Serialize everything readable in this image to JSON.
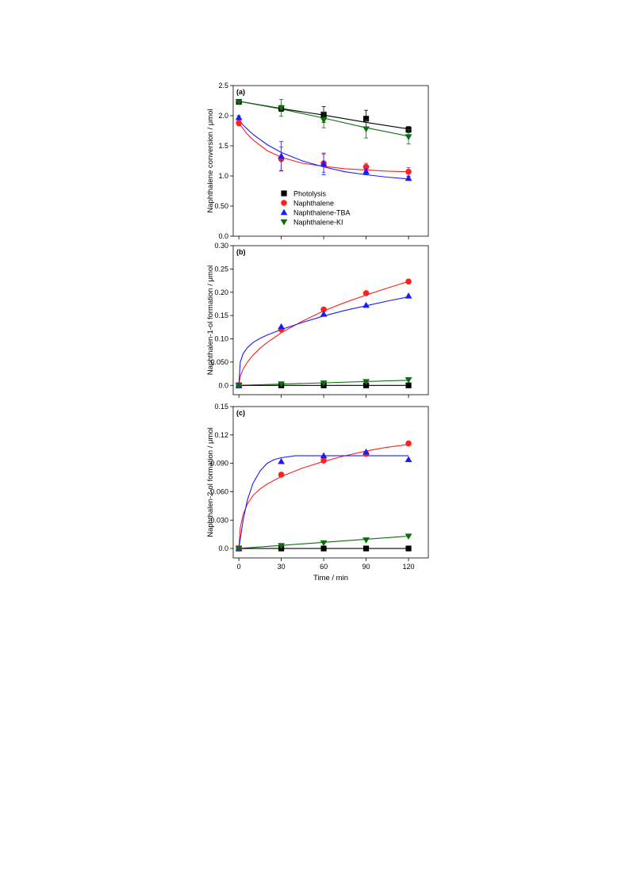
{
  "series_colors": {
    "photolysis": "#000000",
    "naphthalene": "#ff2020",
    "tba": "#1a1aff",
    "ki": "#0a6e0a"
  },
  "chart_data": [
    {
      "type": "scatter",
      "panel_label": "(a)",
      "ylabel": "Naphthalene conversion / μmol",
      "xlabel": "",
      "xlim": [
        -4,
        134
      ],
      "ylim": [
        0,
        2.5
      ],
      "x_ticks": [
        "0",
        "30",
        "60",
        "90",
        "120"
      ],
      "y_ticks": [
        {
          "v": 0,
          "label": "0.0"
        },
        {
          "v": 0.5,
          "label": "0.50"
        },
        {
          "v": 1.0,
          "label": "1.0"
        },
        {
          "v": 1.5,
          "label": "1.5"
        },
        {
          "v": 2.0,
          "label": "2.0"
        },
        {
          "v": 2.5,
          "label": "2.5"
        }
      ],
      "legend": {
        "position": "center-left",
        "entries": [
          "Photolysis",
          "Naphthalene",
          "Naphthalene-TBA",
          "Naphthalene-KI"
        ]
      },
      "series": [
        {
          "key": "photolysis",
          "marker": "square",
          "x": [
            0,
            30,
            60,
            90,
            120
          ],
          "y": [
            2.23,
            2.12,
            2.02,
            1.95,
            1.77
          ],
          "err": [
            0.02,
            0.05,
            0.13,
            0.14,
            0.05
          ]
        },
        {
          "key": "naphthalene",
          "marker": "circle",
          "x": [
            0,
            30,
            60,
            90,
            120
          ],
          "y": [
            1.88,
            1.28,
            1.21,
            1.15,
            1.07
          ],
          "err": [
            0.05,
            0.2,
            0.15,
            0.06,
            0.07
          ]
        },
        {
          "key": "tba",
          "marker": "triangle-up",
          "x": [
            0,
            30,
            60,
            90,
            120
          ],
          "y": [
            1.97,
            1.33,
            1.2,
            1.07,
            0.96
          ],
          "err": [
            0.03,
            0.24,
            0.18,
            0.05,
            0.03
          ]
        },
        {
          "key": "ki",
          "marker": "triangle-down",
          "x": [
            0,
            30,
            60,
            90,
            120
          ],
          "y": [
            2.23,
            2.13,
            1.93,
            1.78,
            1.65
          ],
          "err": [
            0.03,
            0.14,
            0.13,
            0.15,
            0.12
          ]
        }
      ],
      "fits": [
        {
          "key": "photolysis",
          "x": [
            0,
            30,
            60,
            90,
            120
          ],
          "y": [
            2.24,
            2.12,
            2.01,
            1.89,
            1.78
          ]
        },
        {
          "key": "ki",
          "x": [
            0,
            30,
            60,
            90,
            120
          ],
          "y": [
            2.24,
            2.11,
            1.96,
            1.8,
            1.66
          ]
        },
        {
          "key": "naphthalene",
          "x": [
            0,
            5,
            10,
            20,
            30,
            45,
            60,
            75,
            90,
            105,
            120
          ],
          "y": [
            1.88,
            1.72,
            1.6,
            1.42,
            1.31,
            1.21,
            1.16,
            1.12,
            1.1,
            1.08,
            1.07
          ]
        },
        {
          "key": "tba",
          "x": [
            0,
            5,
            10,
            20,
            30,
            45,
            60,
            75,
            90,
            105,
            120
          ],
          "y": [
            1.92,
            1.8,
            1.69,
            1.52,
            1.39,
            1.25,
            1.15,
            1.07,
            1.02,
            0.98,
            0.95
          ]
        }
      ]
    },
    {
      "type": "scatter",
      "panel_label": "(b)",
      "ylabel": "Naphthalen-1-ol formation / μmol",
      "xlabel": "",
      "xlim": [
        -4,
        134
      ],
      "ylim": [
        -0.02,
        0.3
      ],
      "x_ticks": [
        "0",
        "30",
        "60",
        "90",
        "120"
      ],
      "y_ticks": [
        {
          "v": 0,
          "label": "0.0"
        },
        {
          "v": 0.05,
          "label": "0.050"
        },
        {
          "v": 0.1,
          "label": "0.10"
        },
        {
          "v": 0.15,
          "label": "0.15"
        },
        {
          "v": 0.2,
          "label": "0.20"
        },
        {
          "v": 0.25,
          "label": "0.25"
        },
        {
          "v": 0.3,
          "label": "0.30"
        }
      ],
      "series": [
        {
          "key": "photolysis",
          "marker": "square",
          "x": [
            0,
            30,
            60,
            90,
            120
          ],
          "y": [
            0,
            0,
            0,
            0,
            0
          ]
        },
        {
          "key": "naphthalene",
          "marker": "circle",
          "x": [
            0,
            30,
            60,
            90,
            120
          ],
          "y": [
            0,
            0.12,
            0.163,
            0.198,
            0.223
          ]
        },
        {
          "key": "tba",
          "marker": "triangle-up",
          "x": [
            0,
            30,
            60,
            90,
            120
          ],
          "y": [
            0,
            0.126,
            0.153,
            0.172,
            0.192
          ]
        },
        {
          "key": "ki",
          "marker": "triangle-down",
          "x": [
            0,
            30,
            60,
            90,
            120
          ],
          "y": [
            0,
            0.003,
            0.005,
            0.008,
            0.012
          ]
        }
      ],
      "fits": [
        {
          "key": "naphthalene",
          "x": [
            0,
            1,
            3,
            6,
            10,
            15,
            20,
            30,
            45,
            60,
            75,
            90,
            105,
            120
          ],
          "y": [
            0,
            0.02,
            0.035,
            0.05,
            0.065,
            0.08,
            0.092,
            0.113,
            0.138,
            0.16,
            0.178,
            0.194,
            0.209,
            0.223
          ]
        },
        {
          "key": "tba",
          "x": [
            0,
            1,
            3,
            6,
            10,
            15,
            20,
            30,
            45,
            60,
            75,
            90,
            105,
            120
          ],
          "y": [
            0,
            0.05,
            0.068,
            0.081,
            0.092,
            0.101,
            0.108,
            0.12,
            0.135,
            0.149,
            0.161,
            0.171,
            0.181,
            0.19
          ]
        },
        {
          "key": "ki",
          "x": [
            0,
            120
          ],
          "y": [
            0,
            0.011
          ]
        },
        {
          "key": "photolysis",
          "x": [
            0,
            120
          ],
          "y": [
            0,
            0
          ]
        }
      ]
    },
    {
      "type": "scatter",
      "panel_label": "(c)",
      "ylabel": "Naphthalen-2-ol formation / μmol",
      "xlabel": "Time / min",
      "xlim": [
        -4,
        134
      ],
      "ylim": [
        -0.01,
        0.15
      ],
      "x_ticks": [
        "0",
        "30",
        "60",
        "90",
        "120"
      ],
      "y_ticks": [
        {
          "v": 0,
          "label": "0.0"
        },
        {
          "v": 0.03,
          "label": "0.030"
        },
        {
          "v": 0.06,
          "label": "0.060"
        },
        {
          "v": 0.09,
          "label": "0.090"
        },
        {
          "v": 0.12,
          "label": "0.12"
        },
        {
          "v": 0.15,
          "label": "0.15"
        }
      ],
      "series": [
        {
          "key": "photolysis",
          "marker": "square",
          "x": [
            0,
            30,
            60,
            90,
            120
          ],
          "y": [
            0,
            0,
            0,
            0,
            0
          ]
        },
        {
          "key": "naphthalene",
          "marker": "circle",
          "x": [
            0,
            30,
            60,
            90,
            120
          ],
          "y": [
            0,
            0.078,
            0.093,
            0.1,
            0.111
          ]
        },
        {
          "key": "tba",
          "marker": "triangle-up",
          "x": [
            0,
            30,
            60,
            90,
            120
          ],
          "y": [
            0,
            0.092,
            0.098,
            0.102,
            0.094
          ]
        },
        {
          "key": "ki",
          "marker": "triangle-down",
          "x": [
            0,
            30,
            60,
            90,
            120
          ],
          "y": [
            0,
            0.003,
            0.006,
            0.009,
            0.013
          ]
        }
      ],
      "fits": [
        {
          "key": "naphthalene",
          "x": [
            0,
            1,
            3,
            6,
            10,
            15,
            20,
            30,
            45,
            60,
            75,
            90,
            105,
            120
          ],
          "y": [
            0,
            0.022,
            0.036,
            0.047,
            0.056,
            0.063,
            0.068,
            0.076,
            0.085,
            0.092,
            0.098,
            0.103,
            0.107,
            0.11
          ]
        },
        {
          "key": "tba",
          "x": [
            0,
            3,
            6,
            10,
            15,
            20,
            25,
            30,
            40,
            50,
            60,
            90,
            120
          ],
          "y": [
            0,
            0.03,
            0.051,
            0.069,
            0.082,
            0.09,
            0.094,
            0.096,
            0.098,
            0.098,
            0.098,
            0.098,
            0.098
          ]
        },
        {
          "key": "ki",
          "x": [
            0,
            120
          ],
          "y": [
            0,
            0.013
          ]
        },
        {
          "key": "photolysis",
          "x": [
            0,
            120
          ],
          "y": [
            0,
            0
          ]
        }
      ]
    }
  ]
}
